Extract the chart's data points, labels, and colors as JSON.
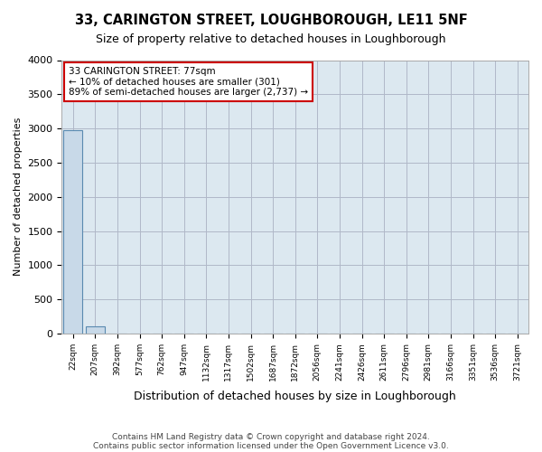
{
  "title": "33, CARINGTON STREET, LOUGHBOROUGH, LE11 5NF",
  "subtitle": "Size of property relative to detached houses in Loughborough",
  "xlabel": "Distribution of detached houses by size in Loughborough",
  "ylabel": "Number of detached properties",
  "bar_labels": [
    "22sqm",
    "207sqm",
    "392sqm",
    "577sqm",
    "762sqm",
    "947sqm",
    "1132sqm",
    "1317sqm",
    "1502sqm",
    "1687sqm",
    "1872sqm",
    "2056sqm",
    "2241sqm",
    "2426sqm",
    "2611sqm",
    "2796sqm",
    "2981sqm",
    "3166sqm",
    "3351sqm",
    "3536sqm",
    "3721sqm"
  ],
  "bar_heights": [
    2980,
    105,
    2,
    1,
    0,
    0,
    0,
    0,
    0,
    0,
    0,
    0,
    0,
    0,
    0,
    0,
    0,
    0,
    0,
    0,
    0
  ],
  "bar_color": "#c8d9e8",
  "bar_edge_color": "#5a8ab0",
  "ylim": [
    0,
    4000
  ],
  "yticks": [
    0,
    500,
    1000,
    1500,
    2000,
    2500,
    3000,
    3500,
    4000
  ],
  "annotation_box_line1": "33 CARINGTON STREET: 77sqm",
  "annotation_box_line2": "← 10% of detached houses are smaller (301)",
  "annotation_box_line3": "89% of semi-detached houses are larger (2,737) →",
  "annotation_box_color": "#cc0000",
  "annotation_box_bg": "#ffffff",
  "grid_color": "#b0b8c8",
  "bg_color": "#dce8f0",
  "footnote_line1": "Contains HM Land Registry data © Crown copyright and database right 2024.",
  "footnote_line2": "Contains public sector information licensed under the Open Government Licence v3.0."
}
